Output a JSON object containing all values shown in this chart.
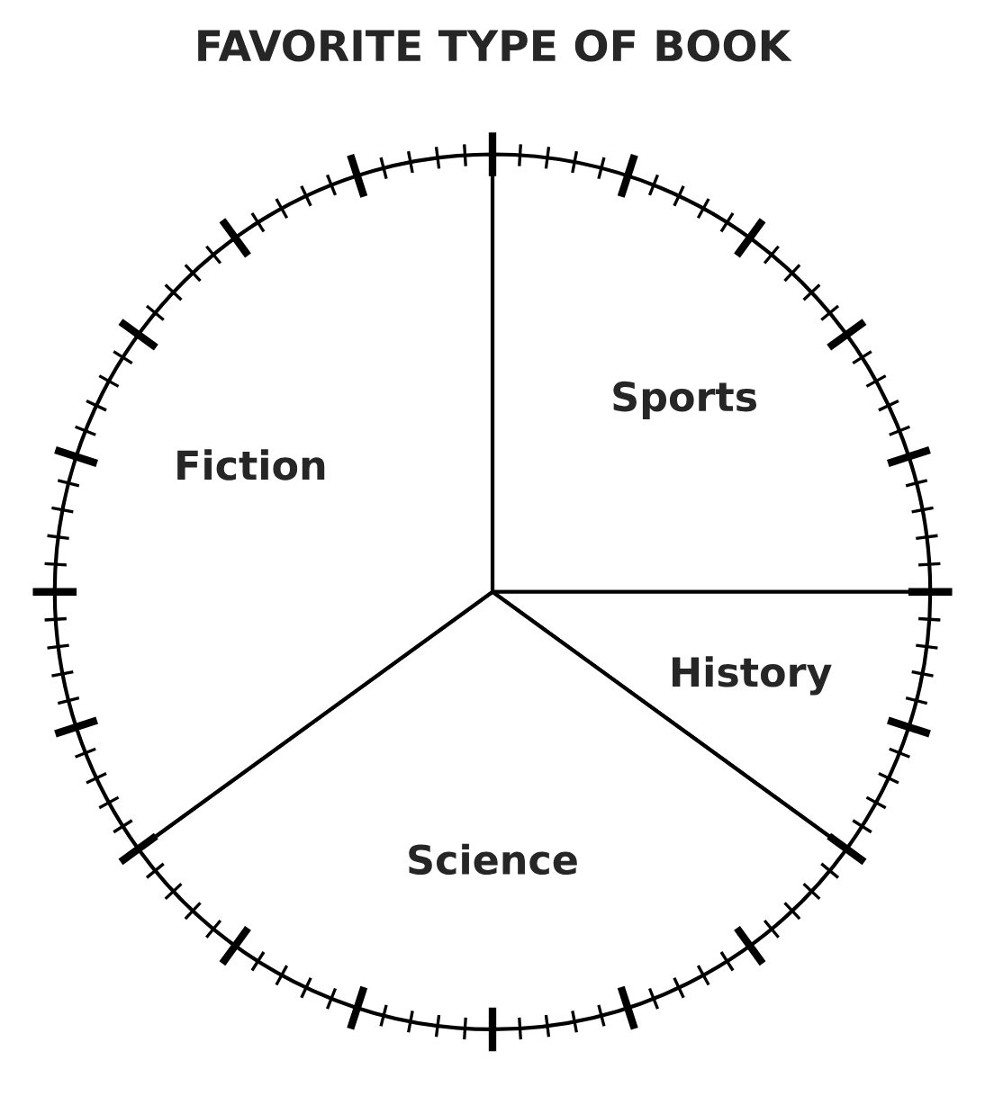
{
  "chart_data": {
    "type": "pie",
    "title": "FAVORITE TYPE OF BOOK",
    "categories": [
      "Sports",
      "History",
      "Science",
      "Fiction"
    ],
    "values": [
      25,
      10,
      30,
      35
    ],
    "colors": [
      "#ffffff",
      "#ffffff",
      "#ffffff",
      "#ffffff"
    ]
  }
}
